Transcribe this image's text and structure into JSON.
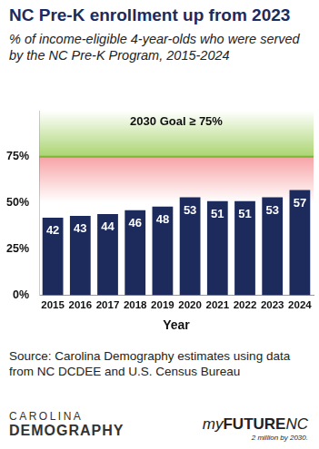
{
  "chart_data": {
    "type": "bar",
    "title": "NC Pre-K enrollment up from 2023",
    "subtitle": "% of income-eligible 4-year-olds who were served by the NC Pre-K Program, 2015-2024",
    "categories": [
      "2015",
      "2016",
      "2017",
      "2018",
      "2019",
      "2020",
      "2021",
      "2022",
      "2023",
      "2024"
    ],
    "values": [
      42,
      43,
      44,
      46,
      48,
      53,
      51,
      51,
      53,
      57
    ],
    "color": "#1d2b5c",
    "x_label": "Year",
    "ylim": [
      0,
      100
    ],
    "yticks": [
      {
        "value": 0,
        "label": "0%"
      },
      {
        "value": 25,
        "label": "25%"
      },
      {
        "value": 50,
        "label": "50%"
      },
      {
        "value": 75,
        "label": "75%"
      }
    ],
    "grid": false,
    "data_labels": true,
    "annotations": [
      {
        "text": "2030 Goal ≥ 75%",
        "value": 75
      }
    ]
  },
  "source": "Source: Carolina Demography estimates using data from NC DCDEE and U.S. Census Bureau",
  "logos": {
    "left": [
      "CAROLINA",
      "DEMOGRAPHY"
    ],
    "right": [
      "my",
      "FUTURE",
      "NC"
    ],
    "tagline": "2 million by 2030."
  }
}
